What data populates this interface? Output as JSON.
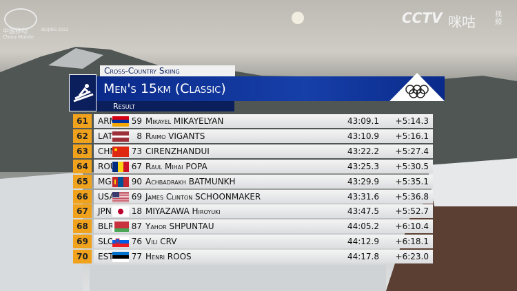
{
  "broadcaster": {
    "sponsor": "中国移动",
    "sponsor_en": "China Mobile",
    "games": "BEIJING 2022",
    "channel": "CCTV",
    "platform": "咪咕",
    "platform_sub": "视频"
  },
  "header": {
    "sport": "Cross-Country Skiing",
    "event": "Men's 15km (Classic)",
    "phase": "Result"
  },
  "table": {
    "rows": [
      [
        "61",
        "ARM",
        "59",
        "Mikayel MIKAYELYAN",
        "43:09.1",
        "+5:14.3"
      ],
      [
        "62",
        "LAT",
        "8",
        "Raimo VIGANTS",
        "43:10.9",
        "+5:16.1"
      ],
      [
        "63",
        "CHN",
        "73",
        "CIRENZHANDUI",
        "43:22.2",
        "+5:27.4"
      ],
      [
        "64",
        "ROU",
        "67",
        "Raul Mihai POPA",
        "43:25.3",
        "+5:30.5"
      ],
      [
        "65",
        "MGL",
        "90",
        "Achbadrakh BATMUNKH",
        "43:29.9",
        "+5:35.1"
      ],
      [
        "66",
        "USA",
        "69",
        "James Clinton SCHOONMAKER",
        "43:31.6",
        "+5:36.8"
      ],
      [
        "67",
        "JPN",
        "18",
        "MIYAZAWA Hiroyuki",
        "43:47.5",
        "+5:52.7"
      ],
      [
        "68",
        "BLR",
        "87",
        "Yahor SHPUNTAU",
        "44:05.2",
        "+6:10.4"
      ],
      [
        "69",
        "SLO",
        "76",
        "Vili CRV",
        "44:12.9",
        "+6:18.1"
      ],
      [
        "70",
        "EST",
        "77",
        "Henri ROOS",
        "44:17.8",
        "+6:23.0"
      ]
    ]
  }
}
